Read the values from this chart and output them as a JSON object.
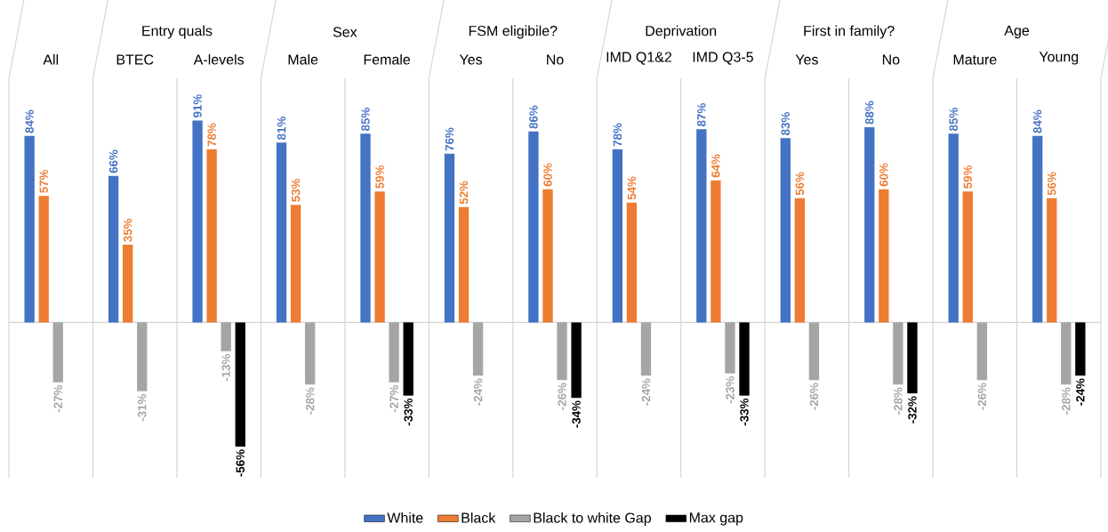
{
  "chart_data": {
    "type": "bar",
    "categories": [
      "All",
      "BTEC",
      "A-levels",
      "Male",
      "Female",
      "Yes",
      "No",
      "IMD Q1&2",
      "IMD Q3-5",
      "Yes",
      "No",
      "Mature",
      "Young"
    ],
    "annotations": [
      "Entry quals",
      "Sex",
      "FSM eligibile?",
      "Deprivation",
      "First in family?",
      "Age"
    ],
    "series": [
      {
        "name": "White",
        "color": "#4472c4",
        "values": [
          84,
          66,
          91,
          81,
          85,
          76,
          86,
          78,
          87,
          83,
          88,
          85,
          84
        ],
        "value_labels": [
          "84%",
          "66%",
          "91%",
          "81%",
          "85%",
          "76%",
          "86%",
          "78%",
          "87%",
          "83%",
          "88%",
          "85%",
          "84%"
        ]
      },
      {
        "name": "Black",
        "color": "#ed7d31",
        "values": [
          57,
          35,
          78,
          53,
          59,
          52,
          60,
          54,
          64,
          56,
          60,
          59,
          56
        ],
        "value_labels": [
          "57%",
          "35%",
          "78%",
          "53%",
          "59%",
          "52%",
          "60%",
          "54%",
          "64%",
          "56%",
          "60%",
          "59%",
          "56%"
        ]
      },
      {
        "name": "Black to white Gap",
        "color": "#a5a5a5",
        "values": [
          -27,
          -31,
          -13,
          -28,
          -27,
          -24,
          -26,
          -24,
          -23,
          -26,
          -28,
          -26,
          -28
        ],
        "value_labels": [
          "-27%",
          "-31%",
          "-13%",
          "-28%",
          "-27%",
          "-24%",
          "-26%",
          "-24%",
          "-23%",
          "-26%",
          "-28%",
          "-26%",
          "-28%"
        ]
      },
      {
        "name": "Max gap",
        "color": "#000000",
        "values": [
          null,
          null,
          -56,
          null,
          -33,
          null,
          -34,
          null,
          -33,
          null,
          -32,
          null,
          -24
        ],
        "value_labels": [
          null,
          null,
          "-56%",
          null,
          "-33%",
          null,
          "-34%",
          null,
          "-33%",
          null,
          "-32%",
          null,
          "-24%"
        ]
      }
    ],
    "ylim": [
      -70,
      110
    ],
    "grid": "x",
    "legend": "bottom",
    "tick_labels": "x"
  }
}
